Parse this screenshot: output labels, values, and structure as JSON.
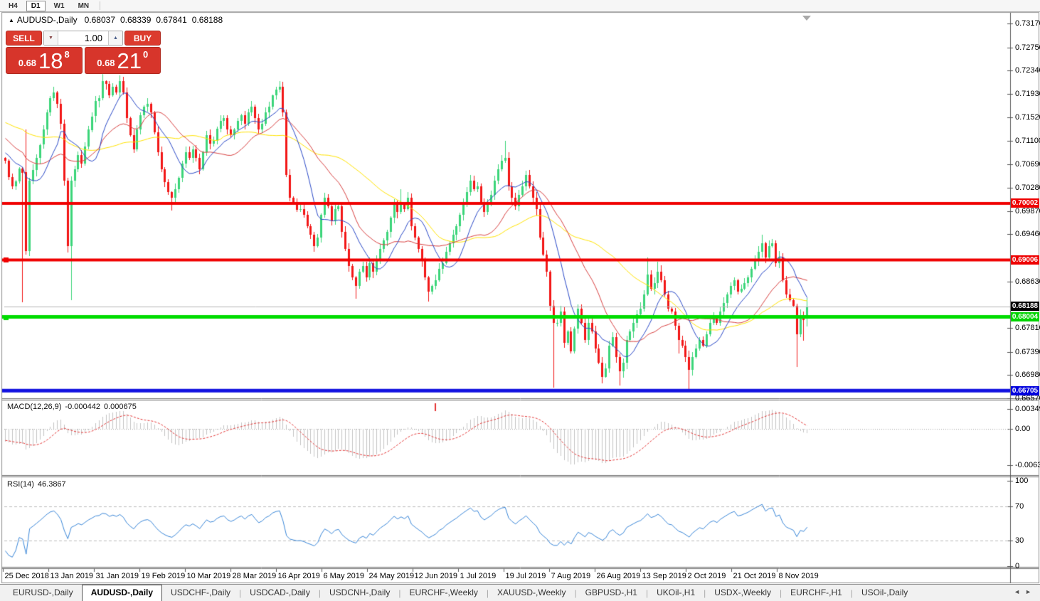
{
  "icons": {
    "collapse": "▲",
    "spinner_down": "▼",
    "spinner_up": "▲",
    "tab_left": "◄",
    "tab_right": "►"
  },
  "toolbar": {
    "timeframes": [
      {
        "label": "H4",
        "active": false
      },
      {
        "label": "D1",
        "active": true
      },
      {
        "label": "W1",
        "active": false
      },
      {
        "label": "MN",
        "active": false
      }
    ]
  },
  "window": {
    "title_symbol": "AUDUSD-,Daily",
    "ohlc": {
      "open": "0.68037",
      "high": "0.68339",
      "low": "0.67841",
      "close": "0.68188"
    }
  },
  "trade_panel": {
    "sell_label": "SELL",
    "buy_label": "BUY",
    "volume": "1.00",
    "sell_price": {
      "base": "0.68",
      "big": "18",
      "pip": "8"
    },
    "buy_price": {
      "base": "0.68",
      "big": "21",
      "pip": "0"
    }
  },
  "price_axis": {
    "ticks": [
      "0.73170",
      "0.72750",
      "0.72340",
      "0.71930",
      "0.71520",
      "0.71100",
      "0.70690",
      "0.70280",
      "0.69870",
      "0.69460",
      "0.68630",
      "0.67810",
      "0.67390",
      "0.66980",
      "0.66570"
    ]
  },
  "price_tags": [
    {
      "label": "0.70002",
      "price": 0.70002,
      "bg": "#ee0000",
      "fg": "#ffffff",
      "name": "resistance-line-tag"
    },
    {
      "label": "0.69006",
      "price": 0.69006,
      "bg": "#ee0000",
      "fg": "#ffffff",
      "name": "resistance-line-tag"
    },
    {
      "label": "0.68188",
      "price": 0.68188,
      "bg": "#000000",
      "fg": "#ffffff",
      "name": "bid-price-tag"
    },
    {
      "label": "0.68004",
      "price": 0.68004,
      "bg": "#00d400",
      "fg": "#ffffff",
      "name": "support-line-tag"
    },
    {
      "label": "0.66705",
      "price": 0.66705,
      "bg": "#0000dd",
      "fg": "#ffffff",
      "name": "support-line-tag"
    }
  ],
  "hlines": [
    {
      "price": 0.70002,
      "color": "#f00000",
      "width": 4,
      "handle": false
    },
    {
      "price": 0.69006,
      "color": "#f00000",
      "width": 4,
      "handle": true
    },
    {
      "price": 0.68004,
      "color": "#00dc00",
      "width": 5,
      "handle": true
    },
    {
      "price": 0.66705,
      "color": "#1212e0",
      "width": 5,
      "handle": false
    }
  ],
  "bid_line": {
    "price": 0.68188,
    "color": "#b4b4b4"
  },
  "indicators": {
    "macd": {
      "label": "MACD(12,26,9)",
      "value1": "-0.000442",
      "value2": "0.000675",
      "axis_ticks": [
        {
          "label": "0.00349",
          "value": 0.00349
        },
        {
          "label": "0.00",
          "value": 0
        },
        {
          "label": "-0.00637",
          "value": -0.00637
        }
      ],
      "hist_color": "#c3c3c3",
      "signal_color": "#e53535",
      "zero_color": "#aaaaaa"
    },
    "rsi": {
      "label": "RSI(14)",
      "value": "46.3867",
      "axis_ticks": [
        {
          "label": "100",
          "value": 100
        },
        {
          "label": "70",
          "value": 70
        },
        {
          "label": "30",
          "value": 30
        },
        {
          "label": "0",
          "value": 0
        }
      ],
      "levels": [
        30,
        70
      ],
      "line_color": "#3a87d9",
      "level_color": "#bbbbbb"
    }
  },
  "chart_data": {
    "type": "candlestick",
    "symbol": "AUDUSD-",
    "timeframe": "Daily",
    "x_labels": [
      "25 Dec 2018",
      "13 Jan 2019",
      "31 Jan 2019",
      "19 Feb 2019",
      "10 Mar 2019",
      "28 Mar 2019",
      "16 Apr 2019",
      "6 May 2019",
      "24 May 2019",
      "12 Jun 2019",
      "1 Jul 2019",
      "19 Jul 2019",
      "7 Aug 2019",
      "26 Aug 2019",
      "13 Sep 2019",
      "2 Oct 2019",
      "21 Oct 2019",
      "8 Nov 2019"
    ],
    "y_axis_range": [
      0.6657,
      0.7317
    ],
    "support_resistance": [
      0.70002,
      0.69006,
      0.68004,
      0.66705
    ],
    "current_candle": {
      "open": 0.68037,
      "high": 0.68339,
      "low": 0.67841,
      "close": 0.68188
    },
    "candle_up_color": "#3bd579",
    "candle_down_color": "#f21616",
    "ma_colors": {
      "fast": "#2a49c8",
      "mid": "#d94040",
      "slow": "#ffe400"
    },
    "warmup_waypoints": [
      [
        -60,
        0.7215
      ],
      [
        -40,
        0.715
      ],
      [
        -25,
        0.719
      ],
      [
        -10,
        0.7105
      ],
      [
        -1,
        0.708
      ]
    ],
    "close_waypoints": [
      [
        0,
        0.7075
      ],
      [
        2,
        0.703
      ],
      [
        4,
        0.7062
      ],
      [
        5,
        0.7055
      ],
      [
        6,
        0.6916
      ],
      [
        7,
        0.704
      ],
      [
        9,
        0.708
      ],
      [
        11,
        0.713
      ],
      [
        12,
        0.716
      ],
      [
        13,
        0.7185
      ],
      [
        14,
        0.7195
      ],
      [
        15,
        0.7175
      ],
      [
        16,
        0.714
      ],
      [
        17,
        0.704
      ],
      [
        18,
        0.6925
      ],
      [
        19,
        0.704
      ],
      [
        20,
        0.706
      ],
      [
        21,
        0.7085
      ],
      [
        22,
        0.707
      ],
      [
        23,
        0.71
      ],
      [
        24,
        0.713
      ],
      [
        26,
        0.718
      ],
      [
        27,
        0.7185
      ],
      [
        28,
        0.7215
      ],
      [
        29,
        0.721
      ],
      [
        30,
        0.719
      ],
      [
        31,
        0.7205
      ],
      [
        32,
        0.7195
      ],
      [
        33,
        0.7215
      ],
      [
        34,
        0.7195
      ],
      [
        35,
        0.715
      ],
      [
        36,
        0.712
      ],
      [
        37,
        0.7095
      ],
      [
        38,
        0.713
      ],
      [
        39,
        0.7155
      ],
      [
        40,
        0.717
      ],
      [
        41,
        0.7175
      ],
      [
        42,
        0.716
      ],
      [
        43,
        0.7125
      ],
      [
        44,
        0.709
      ],
      [
        45,
        0.706
      ],
      [
        47,
        0.702
      ],
      [
        48,
        0.701
      ],
      [
        49,
        0.7025
      ],
      [
        50,
        0.7045
      ],
      [
        51,
        0.707
      ],
      [
        52,
        0.709
      ],
      [
        53,
        0.708
      ],
      [
        54,
        0.7095
      ],
      [
        55,
        0.708
      ],
      [
        56,
        0.706
      ],
      [
        57,
        0.709
      ],
      [
        58,
        0.712
      ],
      [
        59,
        0.7105
      ],
      [
        60,
        0.711
      ],
      [
        62,
        0.7145
      ],
      [
        63,
        0.715
      ],
      [
        64,
        0.713
      ],
      [
        65,
        0.712
      ],
      [
        67,
        0.7145
      ],
      [
        68,
        0.7155
      ],
      [
        69,
        0.714
      ],
      [
        70,
        0.716
      ],
      [
        71,
        0.717
      ],
      [
        72,
        0.715
      ],
      [
        73,
        0.713
      ],
      [
        74,
        0.714
      ],
      [
        75,
        0.716
      ],
      [
        76,
        0.717
      ],
      [
        77,
        0.719
      ],
      [
        78,
        0.72
      ],
      [
        79,
        0.7205
      ],
      [
        80,
        0.716
      ],
      [
        81,
        0.705
      ],
      [
        82,
        0.701
      ],
      [
        83,
        0.7
      ],
      [
        85,
        0.699
      ],
      [
        87,
        0.696
      ],
      [
        88,
        0.6945
      ],
      [
        89,
        0.6925
      ],
      [
        90,
        0.694
      ],
      [
        91,
        0.698
      ],
      [
        92,
        0.701
      ],
      [
        93,
        0.6995
      ],
      [
        94,
        0.697
      ],
      [
        95,
        0.699
      ],
      [
        96,
        0.6995
      ],
      [
        97,
        0.695
      ],
      [
        98,
        0.692
      ],
      [
        99,
        0.689
      ],
      [
        100,
        0.687
      ],
      [
        101,
        0.6855
      ],
      [
        102,
        0.688
      ],
      [
        103,
        0.689
      ],
      [
        104,
        0.687
      ],
      [
        105,
        0.6895
      ],
      [
        106,
        0.688
      ],
      [
        107,
        0.69
      ],
      [
        108,
        0.692
      ],
      [
        109,
        0.6935
      ],
      [
        110,
        0.695
      ],
      [
        111,
        0.6975
      ],
      [
        112,
        0.7
      ],
      [
        113,
        0.6985
      ],
      [
        114,
        0.7
      ],
      [
        115,
        0.699
      ],
      [
        116,
        0.701
      ],
      [
        117,
        0.696
      ],
      [
        118,
        0.694
      ],
      [
        119,
        0.692
      ],
      [
        120,
        0.69
      ],
      [
        121,
        0.687
      ],
      [
        122,
        0.6845
      ],
      [
        123,
        0.6855
      ],
      [
        124,
        0.6865
      ],
      [
        125,
        0.6885
      ],
      [
        126,
        0.6895
      ],
      [
        127,
        0.6915
      ],
      [
        128,
        0.693
      ],
      [
        129,
        0.6945
      ],
      [
        130,
        0.696
      ],
      [
        131,
        0.698
      ],
      [
        132,
        0.7
      ],
      [
        133,
        0.702
      ],
      [
        134,
        0.704
      ],
      [
        135,
        0.7025
      ],
      [
        136,
        0.703
      ],
      [
        137,
        0.7
      ],
      [
        138,
        0.6985
      ],
      [
        139,
        0.7
      ],
      [
        140,
        0.7015
      ],
      [
        141,
        0.704
      ],
      [
        142,
        0.706
      ],
      [
        143,
        0.7075
      ],
      [
        144,
        0.708
      ],
      [
        145,
        0.703
      ],
      [
        146,
        0.701
      ],
      [
        147,
        0.6995
      ],
      [
        148,
        0.7015
      ],
      [
        149,
        0.703
      ],
      [
        150,
        0.705
      ],
      [
        151,
        0.703
      ],
      [
        152,
        0.701
      ],
      [
        153,
        0.699
      ],
      [
        154,
        0.694
      ],
      [
        155,
        0.691
      ],
      [
        156,
        0.688
      ],
      [
        157,
        0.682
      ],
      [
        158,
        0.679
      ],
      [
        159,
        0.679
      ],
      [
        160,
        0.681
      ],
      [
        161,
        0.6755
      ],
      [
        162,
        0.6775
      ],
      [
        163,
        0.674
      ],
      [
        164,
        0.678
      ],
      [
        165,
        0.6815
      ],
      [
        166,
        0.679
      ],
      [
        167,
        0.676
      ],
      [
        168,
        0.679
      ],
      [
        169,
        0.6775
      ],
      [
        170,
        0.6745
      ],
      [
        171,
        0.672
      ],
      [
        172,
        0.6695
      ],
      [
        173,
        0.671
      ],
      [
        174,
        0.675
      ],
      [
        175,
        0.6765
      ],
      [
        176,
        0.673
      ],
      [
        177,
        0.6705
      ],
      [
        178,
        0.672
      ],
      [
        179,
        0.676
      ],
      [
        180,
        0.6775
      ],
      [
        181,
        0.679
      ],
      [
        182,
        0.6805
      ],
      [
        183,
        0.6815
      ],
      [
        184,
        0.684
      ],
      [
        185,
        0.6875
      ],
      [
        186,
        0.685
      ],
      [
        187,
        0.686
      ],
      [
        188,
        0.688
      ],
      [
        189,
        0.6865
      ],
      [
        190,
        0.684
      ],
      [
        191,
        0.6815
      ],
      [
        192,
        0.681
      ],
      [
        193,
        0.6785
      ],
      [
        194,
        0.676
      ],
      [
        195,
        0.675
      ],
      [
        196,
        0.673
      ],
      [
        197,
        0.6708
      ],
      [
        198,
        0.673
      ],
      [
        199,
        0.6745
      ],
      [
        200,
        0.676
      ],
      [
        201,
        0.675
      ],
      [
        202,
        0.677
      ],
      [
        203,
        0.679
      ],
      [
        204,
        0.68
      ],
      [
        205,
        0.679
      ],
      [
        206,
        0.681
      ],
      [
        207,
        0.6825
      ],
      [
        208,
        0.684
      ],
      [
        209,
        0.6855
      ],
      [
        210,
        0.6865
      ],
      [
        211,
        0.6845
      ],
      [
        212,
        0.685
      ],
      [
        213,
        0.686
      ],
      [
        214,
        0.687
      ],
      [
        215,
        0.6885
      ],
      [
        216,
        0.69
      ],
      [
        217,
        0.6915
      ],
      [
        218,
        0.693
      ],
      [
        219,
        0.6905
      ],
      [
        220,
        0.6925
      ],
      [
        221,
        0.693
      ],
      [
        222,
        0.6895
      ],
      [
        223,
        0.6905
      ],
      [
        224,
        0.6865
      ],
      [
        225,
        0.684
      ],
      [
        226,
        0.683
      ],
      [
        227,
        0.682
      ],
      [
        228,
        0.677
      ],
      [
        229,
        0.6802
      ],
      [
        230,
        0.6795
      ],
      [
        231,
        0.68188
      ]
    ],
    "wick_extremes": {
      "5": {
        "l": 0.6827
      },
      "6": {
        "h": 0.713
      },
      "14": {
        "h": 0.7205
      },
      "19": {
        "l": 0.683
      },
      "28": {
        "h": 0.7228
      },
      "33": {
        "h": 0.7225
      },
      "41": {
        "h": 0.7185
      },
      "48": {
        "l": 0.6988
      },
      "52": {
        "h": 0.71
      },
      "71": {
        "h": 0.718
      },
      "79": {
        "h": 0.7215
      },
      "89": {
        "l": 0.6915
      },
      "92": {
        "h": 0.7018
      },
      "101": {
        "l": 0.6832
      },
      "112": {
        "h": 0.7008
      },
      "114": {
        "h": 0.7025
      },
      "122": {
        "l": 0.6828
      },
      "134": {
        "h": 0.705
      },
      "144": {
        "h": 0.711
      },
      "150": {
        "h": 0.7058
      },
      "158": {
        "l": 0.6676
      },
      "172": {
        "l": 0.6683
      },
      "177": {
        "l": 0.668
      },
      "185": {
        "h": 0.6905
      },
      "188": {
        "h": 0.6898
      },
      "194": {
        "l": 0.6735
      },
      "197": {
        "l": 0.6672
      },
      "218": {
        "h": 0.6945
      },
      "221": {
        "h": 0.6938
      },
      "228": {
        "l": 0.6712
      },
      "230": {
        "l": 0.6758
      }
    }
  },
  "tabs": {
    "items": [
      {
        "label": "EURUSD-,Daily",
        "active": false
      },
      {
        "label": "AUDUSD-,Daily",
        "active": true
      },
      {
        "label": "USDCHF-,Daily",
        "active": false
      },
      {
        "label": "USDCAD-,Daily",
        "active": false
      },
      {
        "label": "USDCNH-,Daily",
        "active": false
      },
      {
        "label": "EURCHF-,Weekly",
        "active": false
      },
      {
        "label": "XAUUSD-,Weekly",
        "active": false
      },
      {
        "label": "GBPUSD-,H1",
        "active": false
      },
      {
        "label": "UKOil-,H1",
        "active": false
      },
      {
        "label": "USDX-,Weekly",
        "active": false
      },
      {
        "label": "EURCHF-,H1",
        "active": false
      },
      {
        "label": "USOil-,Daily",
        "active": false
      }
    ]
  }
}
